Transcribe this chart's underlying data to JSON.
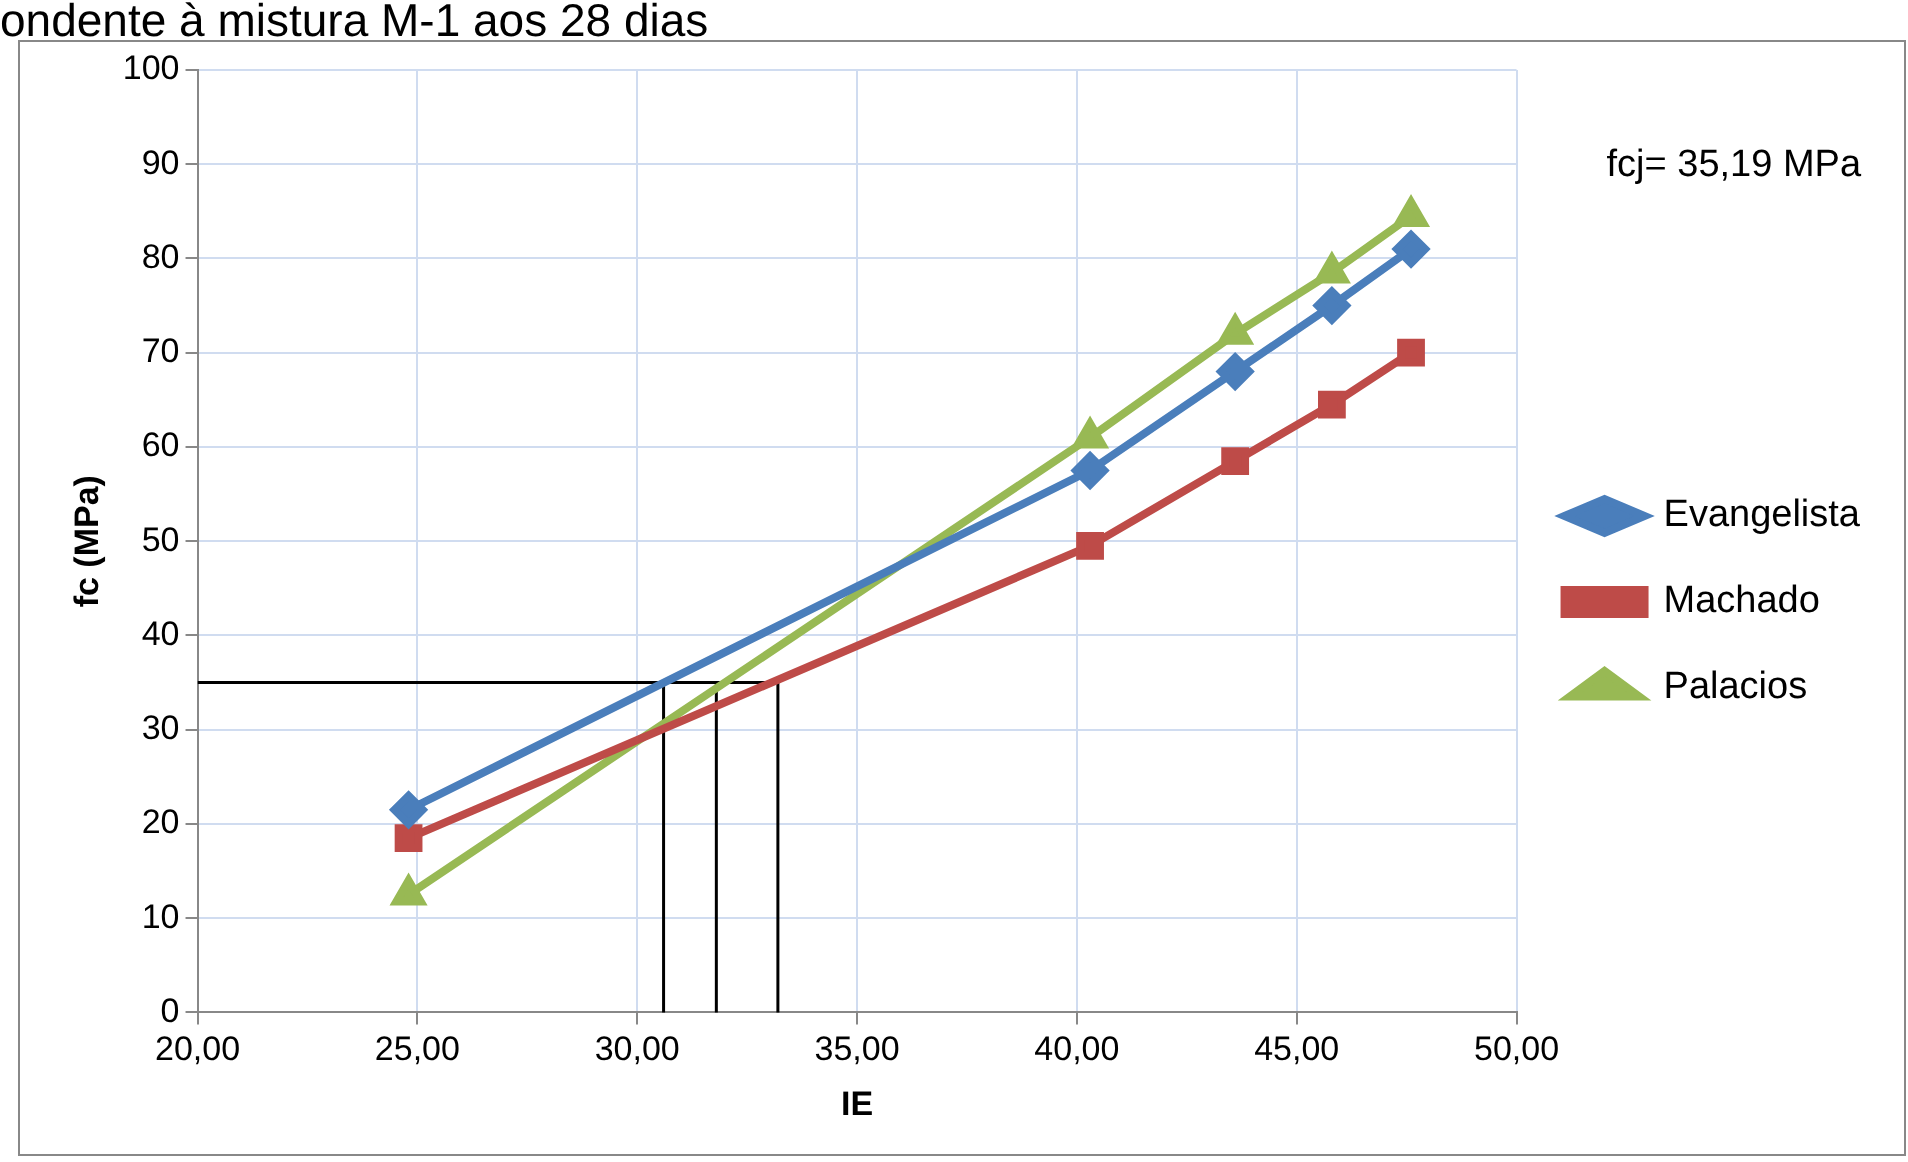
{
  "chart_data": {
    "type": "line",
    "title": "ondente à mistura M-1 aos 28 dias",
    "xlabel": "IE",
    "ylabel": "fc (MPa)",
    "annotations": [
      "fcj= 35,19 MPa"
    ],
    "xlim": [
      20,
      50
    ],
    "xticks": [
      {
        "value": 20,
        "label": "20,00"
      },
      {
        "value": 25,
        "label": "25,00"
      },
      {
        "value": 30,
        "label": "30,00"
      },
      {
        "value": 35,
        "label": "35,00"
      },
      {
        "value": 40,
        "label": "40,00"
      },
      {
        "value": 45,
        "label": "45,00"
      },
      {
        "value": 50,
        "label": "50,00"
      }
    ],
    "ylim": [
      0,
      100
    ],
    "yticks": [
      0,
      10,
      20,
      30,
      40,
      50,
      60,
      70,
      80,
      90,
      100
    ],
    "grid": true,
    "legend": "right",
    "series": [
      {
        "name": "Evangelista",
        "color": "#4a7ebb",
        "marker": "diamond",
        "x": [
          24.8,
          40.3,
          43.6,
          45.8,
          47.6
        ],
        "values": [
          21.5,
          57.5,
          68,
          75,
          81
        ]
      },
      {
        "name": "Machado",
        "color": "#be4b48",
        "marker": "square",
        "x": [
          24.8,
          40.3,
          43.6,
          45.8,
          47.6
        ],
        "values": [
          18.5,
          49.5,
          58.5,
          64.5,
          70
        ]
      },
      {
        "name": "Palacios",
        "color": "#98b954",
        "marker": "triangle",
        "x": [
          24.8,
          40.3,
          43.6,
          45.8,
          47.6
        ],
        "values": [
          12.5,
          61,
          72,
          78.5,
          84.5
        ]
      },
      {
        "color": "#000000",
        "marker": "none",
        "x": [
          20,
          33.2,
          33.2
        ],
        "values": [
          35,
          35,
          0
        ]
      },
      {
        "color": "#000000",
        "marker": "none",
        "x": [
          30.6,
          30.6
        ],
        "values": [
          35,
          0
        ]
      },
      {
        "color": "#000000",
        "marker": "none",
        "x": [
          31.8,
          31.8
        ],
        "values": [
          35,
          0
        ]
      }
    ]
  }
}
